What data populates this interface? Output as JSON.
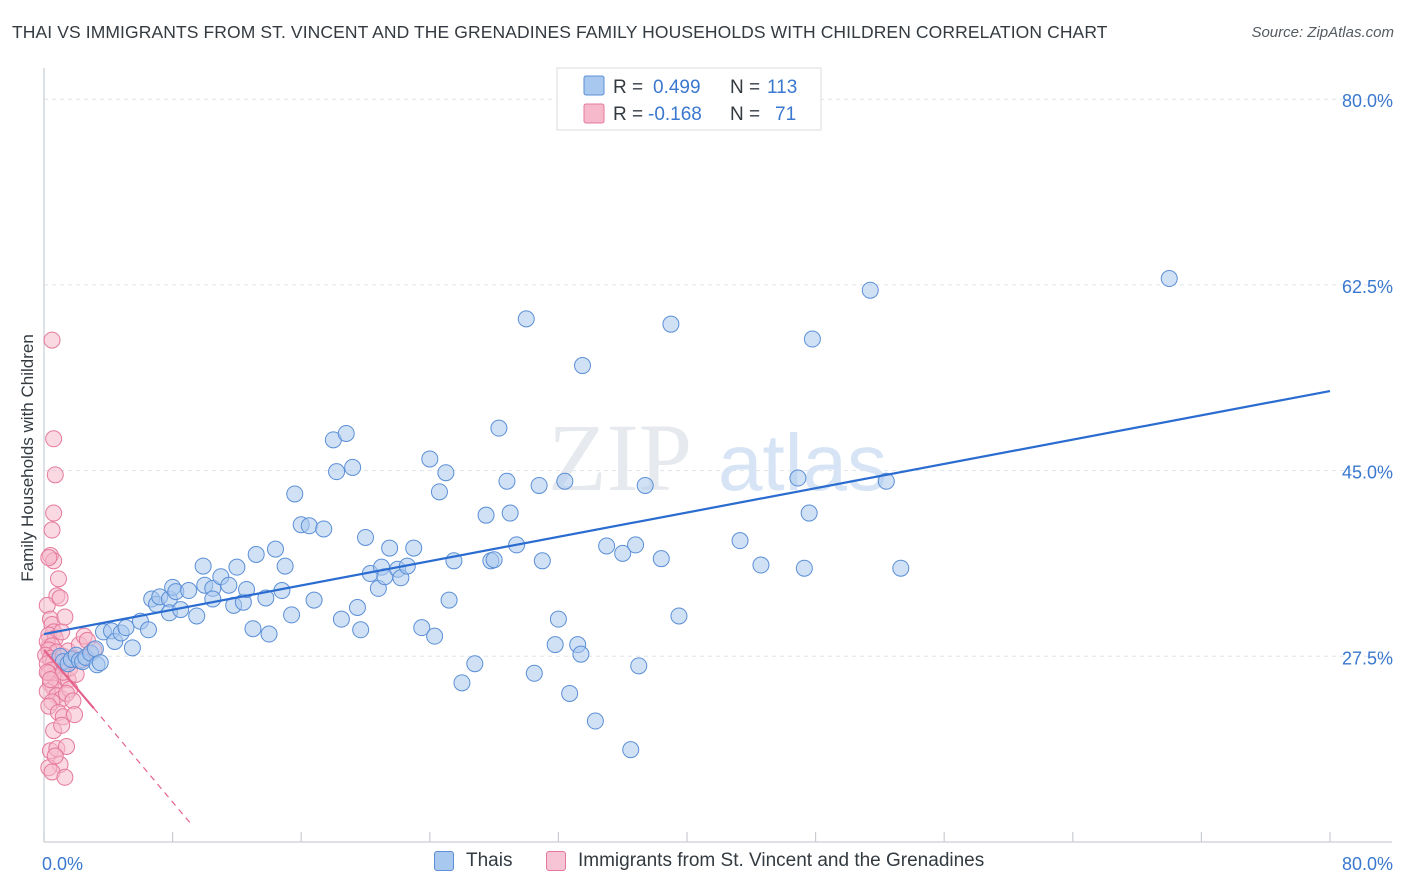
{
  "header": {
    "title": "THAI VS IMMIGRANTS FROM ST. VINCENT AND THE GRENADINES FAMILY HOUSEHOLDS WITH CHILDREN CORRELATION CHART",
    "source": "Source: ZipAtlas.com"
  },
  "watermark": {
    "zip": "ZIP",
    "atlas": "atlas"
  },
  "colors": {
    "blue_fill": "#a9c8ef",
    "blue_stroke": "#5b8fd6",
    "blue_line": "#2a6ccf",
    "blue_text": "#3a78cf",
    "pink_fill": "#f6b9cc",
    "pink_stroke": "#e5799c",
    "pink_line": "#e4628c",
    "grid": "#dfe3e8",
    "axis": "#c9cdd2"
  },
  "legend_top": [
    {
      "r_label": "R =",
      "r_value": "0.499",
      "n_label": "N =",
      "n_value": "113"
    },
    {
      "r_label": "R =",
      "r_value": "-0.168",
      "n_label": "N =",
      "n_value": "71"
    }
  ],
  "legend_bottom": [
    {
      "label": "Thais"
    },
    {
      "label": "Immigrants from St. Vincent and the Grenadines"
    }
  ],
  "chart_data": {
    "type": "scatter",
    "title": "THAI VS IMMIGRANTS FROM ST. VINCENT AND THE GRENADINES FAMILY HOUSEHOLDS WITH CHILDREN CORRELATION CHART",
    "xlabel": "",
    "ylabel": "Family Households with Children",
    "xlim": [
      0,
      80
    ],
    "ylim": [
      10,
      82
    ],
    "x_tick_labels": [
      {
        "value": 0,
        "label": "0.0%"
      },
      {
        "value": 80,
        "label": "80.0%"
      }
    ],
    "y_tick_labels": [
      {
        "value": 27.5,
        "label": "27.5%"
      },
      {
        "value": 45.0,
        "label": "45.0%"
      },
      {
        "value": 62.5,
        "label": "62.5%"
      },
      {
        "value": 80.0,
        "label": "80.0%"
      }
    ],
    "x_minor_ticks": [
      0,
      8,
      16,
      24,
      32,
      40,
      48,
      56,
      64,
      72,
      80
    ],
    "series": [
      {
        "name": "Thais",
        "color": "blue",
        "r": 0.499,
        "n": 113,
        "trend": {
          "x": [
            0,
            80
          ],
          "y": [
            29.6,
            52.5
          ],
          "style": "solid"
        },
        "points": [
          [
            1.0,
            27.5
          ],
          [
            1.2,
            27.0
          ],
          [
            1.5,
            26.8
          ],
          [
            1.7,
            27.2
          ],
          [
            2.0,
            27.6
          ],
          [
            2.2,
            27.1
          ],
          [
            2.4,
            27.0
          ],
          [
            2.6,
            27.4
          ],
          [
            2.9,
            27.8
          ],
          [
            3.2,
            28.2
          ],
          [
            3.3,
            26.7
          ],
          [
            3.5,
            26.9
          ],
          [
            3.7,
            29.8
          ],
          [
            4.2,
            29.9
          ],
          [
            4.4,
            28.9
          ],
          [
            4.8,
            29.7
          ],
          [
            5.1,
            30.2
          ],
          [
            5.5,
            28.3
          ],
          [
            6.0,
            30.8
          ],
          [
            6.5,
            30.0
          ],
          [
            6.7,
            32.9
          ],
          [
            7.0,
            32.4
          ],
          [
            7.2,
            33.1
          ],
          [
            7.8,
            32.9
          ],
          [
            7.8,
            31.6
          ],
          [
            8.0,
            34.0
          ],
          [
            8.2,
            33.6
          ],
          [
            8.5,
            31.9
          ],
          [
            9.0,
            33.7
          ],
          [
            9.5,
            31.3
          ],
          [
            9.9,
            36.0
          ],
          [
            10.0,
            34.2
          ],
          [
            10.5,
            33.9
          ],
          [
            10.5,
            32.9
          ],
          [
            11.0,
            35.0
          ],
          [
            11.5,
            34.2
          ],
          [
            11.8,
            32.3
          ],
          [
            12.0,
            35.9
          ],
          [
            12.4,
            32.6
          ],
          [
            12.6,
            33.8
          ],
          [
            13.0,
            30.1
          ],
          [
            13.2,
            37.1
          ],
          [
            13.8,
            33.0
          ],
          [
            14.0,
            29.6
          ],
          [
            14.4,
            37.6
          ],
          [
            14.8,
            33.7
          ],
          [
            15.0,
            36.0
          ],
          [
            15.4,
            31.4
          ],
          [
            15.6,
            42.8
          ],
          [
            16.0,
            39.9
          ],
          [
            16.5,
            39.8
          ],
          [
            16.8,
            32.8
          ],
          [
            17.4,
            39.5
          ],
          [
            18.0,
            47.9
          ],
          [
            18.2,
            44.9
          ],
          [
            18.5,
            31.0
          ],
          [
            18.8,
            48.5
          ],
          [
            19.2,
            45.3
          ],
          [
            19.5,
            32.1
          ],
          [
            19.7,
            30.0
          ],
          [
            20.0,
            38.7
          ],
          [
            20.3,
            35.3
          ],
          [
            20.8,
            33.9
          ],
          [
            21.0,
            35.9
          ],
          [
            21.2,
            35.0
          ],
          [
            21.5,
            37.7
          ],
          [
            22.0,
            35.7
          ],
          [
            22.2,
            34.9
          ],
          [
            22.6,
            36.0
          ],
          [
            23.0,
            37.7
          ],
          [
            23.5,
            30.2
          ],
          [
            24.0,
            46.1
          ],
          [
            24.3,
            29.4
          ],
          [
            24.6,
            43.0
          ],
          [
            25.0,
            44.8
          ],
          [
            25.2,
            32.8
          ],
          [
            25.5,
            36.5
          ],
          [
            26.0,
            25.0
          ],
          [
            26.8,
            26.8
          ],
          [
            27.5,
            40.8
          ],
          [
            27.8,
            36.5
          ],
          [
            28.0,
            36.6
          ],
          [
            28.3,
            49.0
          ],
          [
            28.8,
            44.0
          ],
          [
            29.0,
            41.0
          ],
          [
            29.4,
            38.0
          ],
          [
            30.0,
            59.3
          ],
          [
            30.5,
            25.9
          ],
          [
            30.8,
            43.6
          ],
          [
            31.0,
            36.5
          ],
          [
            31.8,
            28.6
          ],
          [
            32.0,
            31.0
          ],
          [
            32.4,
            44.0
          ],
          [
            32.7,
            24.0
          ],
          [
            33.2,
            28.6
          ],
          [
            33.4,
            27.7
          ],
          [
            33.5,
            54.9
          ],
          [
            34.3,
            21.4
          ],
          [
            35.0,
            37.9
          ],
          [
            36.0,
            37.2
          ],
          [
            36.5,
            18.7
          ],
          [
            36.8,
            38.0
          ],
          [
            37.0,
            26.6
          ],
          [
            37.4,
            43.6
          ],
          [
            38.4,
            36.7
          ],
          [
            39.0,
            58.8
          ],
          [
            39.5,
            31.3
          ],
          [
            43.3,
            38.4
          ],
          [
            44.6,
            36.1
          ],
          [
            46.9,
            44.3
          ],
          [
            47.3,
            35.8
          ],
          [
            47.6,
            41.0
          ],
          [
            47.8,
            57.4
          ],
          [
            51.4,
            62.0
          ],
          [
            52.4,
            44.0
          ],
          [
            53.3,
            35.8
          ],
          [
            70.0,
            63.1
          ]
        ]
      },
      {
        "name": "Immigrants from St. Vincent and the Grenadines",
        "color": "pink",
        "r": -0.168,
        "n": 71,
        "trend_solid": {
          "x": [
            0,
            3.1
          ],
          "y": [
            28.1,
            22.6
          ]
        },
        "trend_dashed": {
          "x": [
            3.1,
            9.2
          ],
          "y": [
            22.6,
            11.6
          ]
        },
        "points": [
          [
            0.3,
            28.4
          ],
          [
            0.5,
            57.3
          ],
          [
            0.6,
            48.0
          ],
          [
            0.7,
            44.6
          ],
          [
            0.6,
            41.0
          ],
          [
            0.5,
            39.4
          ],
          [
            0.4,
            37.0
          ],
          [
            0.6,
            36.5
          ],
          [
            0.3,
            36.8
          ],
          [
            0.8,
            33.2
          ],
          [
            0.2,
            32.3
          ],
          [
            0.4,
            31.0
          ],
          [
            0.5,
            30.5
          ],
          [
            0.6,
            29.8
          ],
          [
            0.3,
            29.5
          ],
          [
            0.7,
            29.2
          ],
          [
            0.2,
            28.9
          ],
          [
            0.5,
            28.5
          ],
          [
            0.3,
            28.1
          ],
          [
            0.8,
            27.9
          ],
          [
            0.1,
            27.6
          ],
          [
            0.4,
            27.3
          ],
          [
            0.6,
            27.0
          ],
          [
            0.2,
            26.8
          ],
          [
            0.9,
            26.5
          ],
          [
            0.5,
            26.2
          ],
          [
            0.3,
            25.9
          ],
          [
            0.7,
            25.5
          ],
          [
            1.0,
            25.2
          ],
          [
            0.4,
            24.9
          ],
          [
            0.6,
            24.5
          ],
          [
            0.2,
            24.2
          ],
          [
            0.8,
            23.8
          ],
          [
            1.1,
            23.5
          ],
          [
            0.5,
            23.2
          ],
          [
            0.3,
            22.8
          ],
          [
            0.9,
            22.2
          ],
          [
            1.2,
            21.8
          ],
          [
            0.6,
            20.5
          ],
          [
            0.4,
            18.6
          ],
          [
            0.8,
            18.8
          ],
          [
            1.0,
            17.3
          ],
          [
            0.3,
            17.0
          ],
          [
            0.5,
            16.6
          ],
          [
            1.3,
            16.1
          ],
          [
            1.5,
            25.3
          ],
          [
            1.6,
            24.4
          ],
          [
            1.4,
            24.0
          ],
          [
            1.8,
            23.3
          ],
          [
            1.9,
            22.0
          ],
          [
            1.2,
            27.5
          ],
          [
            1.5,
            28.0
          ],
          [
            1.7,
            27.0
          ],
          [
            2.2,
            28.6
          ],
          [
            2.5,
            29.4
          ],
          [
            2.7,
            29.0
          ],
          [
            3.1,
            28.1
          ],
          [
            1.1,
            29.8
          ],
          [
            1.3,
            31.2
          ],
          [
            1.0,
            33.0
          ],
          [
            0.9,
            34.8
          ],
          [
            1.2,
            26.0
          ],
          [
            1.6,
            26.4
          ],
          [
            2.0,
            25.8
          ],
          [
            1.8,
            27.3
          ],
          [
            2.4,
            27.2
          ],
          [
            0.2,
            26.0
          ],
          [
            0.4,
            25.3
          ],
          [
            1.4,
            19.0
          ],
          [
            0.7,
            18.1
          ],
          [
            1.1,
            21.0
          ]
        ]
      }
    ]
  }
}
